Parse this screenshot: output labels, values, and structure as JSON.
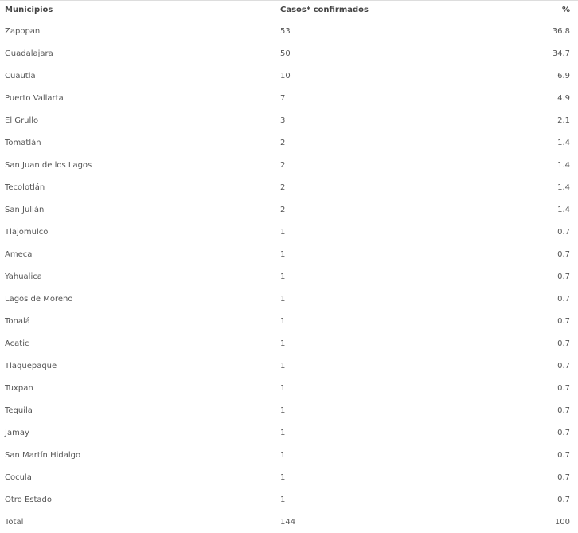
{
  "table": {
    "headers": [
      "Municipios",
      "Casos*  confirmados",
      "%"
    ],
    "rows": [
      [
        "Zapopan",
        "53",
        "36.8"
      ],
      [
        "Guadalajara",
        "50",
        "34.7"
      ],
      [
        "Cuautla",
        "10",
        "6.9"
      ],
      [
        "Puerto Vallarta",
        "7",
        "4.9"
      ],
      [
        "El Grullo",
        "3",
        "2.1"
      ],
      [
        "Tomatlán",
        "2",
        "1.4"
      ],
      [
        "San Juan de los Lagos",
        "2",
        "1.4"
      ],
      [
        "Tecolotlán",
        "2",
        "1.4"
      ],
      [
        "San Julián",
        "2",
        "1.4"
      ],
      [
        "Tlajomulco",
        "1",
        "0.7"
      ],
      [
        "Ameca",
        "1",
        "0.7"
      ],
      [
        "Yahualica",
        "1",
        "0.7"
      ],
      [
        "Lagos de Moreno",
        "1",
        "0.7"
      ],
      [
        "Tonalá",
        "1",
        "0.7"
      ],
      [
        "Acatic",
        "1",
        "0.7"
      ],
      [
        "Tlaquepaque",
        "1",
        "0.7"
      ],
      [
        "Tuxpan",
        "1",
        "0.7"
      ],
      [
        "Tequila",
        "1",
        "0.7"
      ],
      [
        "Jamay",
        "1",
        "0.7"
      ],
      [
        "San Martín Hidalgo",
        "1",
        "0.7"
      ],
      [
        "Cocula",
        "1",
        "0.7"
      ],
      [
        "Otro Estado",
        "1",
        "0.7"
      ],
      [
        "Total",
        "144",
        "100"
      ]
    ]
  }
}
